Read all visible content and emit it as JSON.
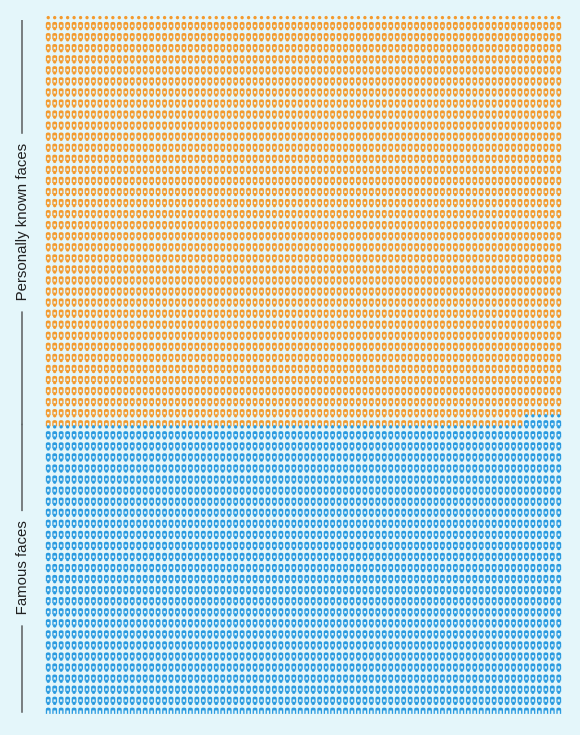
{
  "chart_data": {
    "type": "pictogram",
    "series": [
      {
        "name": "Personally known faces",
        "color": "#f39a2e",
        "values": [
          2954
        ]
      },
      {
        "name": "Famous faces",
        "color": "#2b9be0",
        "values": [
          2086
        ]
      }
    ]
  }
}
